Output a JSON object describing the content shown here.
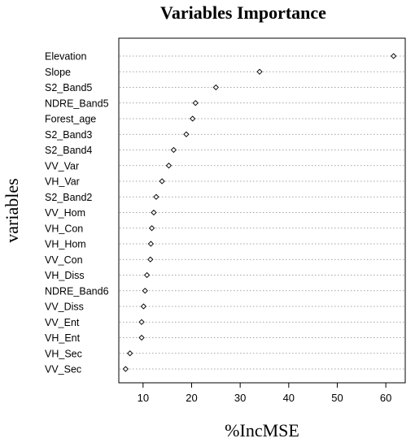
{
  "chart_data": {
    "type": "scatter",
    "title": "Variables Importance",
    "xlabel": "%IncMSE",
    "ylabel": "variables",
    "xlim": [
      5,
      64
    ],
    "xticks": [
      10,
      20,
      30,
      40,
      50,
      60
    ],
    "grid": "dotted horizontal lines",
    "marker": "open diamond",
    "categories": [
      "Elevation",
      "Slope",
      "S2_Band5",
      "NDRE_Band5",
      "Forest_age",
      "S2_Band3",
      "S2_Band4",
      "VV_Var",
      "VH_Var",
      "S2_Band2",
      "VV_Hom",
      "VH_Con",
      "VH_Hom",
      "VV_Con",
      "VH_Diss",
      "NDRE_Band6",
      "VV_Diss",
      "VV_Ent",
      "VH_Ent",
      "VH_Sec",
      "VV_Sec"
    ],
    "values": [
      61.6,
      34.0,
      25.0,
      20.8,
      20.2,
      18.9,
      16.3,
      15.3,
      13.9,
      12.7,
      12.2,
      11.8,
      11.6,
      11.5,
      10.8,
      10.4,
      10.1,
      9.7,
      9.7,
      7.3,
      6.4
    ]
  }
}
